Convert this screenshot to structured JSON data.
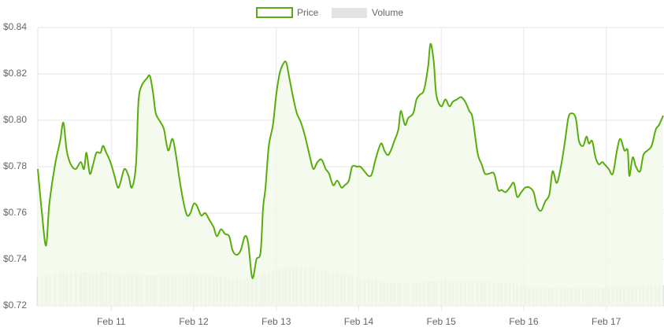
{
  "chart_data": {
    "type": "line",
    "x": [
      10.11,
      10.16,
      10.21,
      10.25,
      10.32,
      10.38,
      10.42,
      10.46,
      10.51,
      10.57,
      10.63,
      10.67,
      10.7,
      10.74,
      10.78,
      10.82,
      10.87,
      10.9,
      10.94,
      10.99,
      11.04,
      11.08,
      11.11,
      11.16,
      11.21,
      11.25,
      11.3,
      11.33,
      11.37,
      11.43,
      11.47,
      11.51,
      11.54,
      11.6,
      11.64,
      11.69,
      11.74,
      11.78,
      11.83,
      11.88,
      11.92,
      11.96,
      12.0,
      12.04,
      12.09,
      12.14,
      12.19,
      12.24,
      12.28,
      12.33,
      12.38,
      12.43,
      12.47,
      12.52,
      12.57,
      12.62,
      12.66,
      12.71,
      12.76,
      12.81,
      12.84,
      12.87,
      12.91,
      12.96,
      13.0,
      13.04,
      13.08,
      13.12,
      13.16,
      13.21,
      13.25,
      13.3,
      13.35,
      13.41,
      13.45,
      13.5,
      13.55,
      13.6,
      13.64,
      13.69,
      13.74,
      13.79,
      13.83,
      13.88,
      13.92,
      13.98,
      14.02,
      14.07,
      14.12,
      14.16,
      14.21,
      14.27,
      14.31,
      14.35,
      14.39,
      14.43,
      14.48,
      14.51,
      14.56,
      14.6,
      14.66,
      14.7,
      14.74,
      14.79,
      14.84,
      14.87,
      14.91,
      14.94,
      15.0,
      15.05,
      15.1,
      15.14,
      15.19,
      15.24,
      15.29,
      15.34,
      15.38,
      15.44,
      15.49,
      15.53,
      15.58,
      15.64,
      15.69,
      15.73,
      15.78,
      15.83,
      15.88,
      15.92,
      15.97,
      16.02,
      16.07,
      16.12,
      16.16,
      16.21,
      16.26,
      16.31,
      16.35,
      16.4,
      16.45,
      16.5,
      16.54,
      16.58,
      16.63,
      16.67,
      16.72,
      16.76,
      16.79,
      16.83,
      16.87,
      16.91,
      16.95,
      16.98,
      17.03,
      17.08,
      17.13,
      17.17,
      17.22,
      17.26,
      17.28,
      17.32,
      17.36,
      17.41,
      17.45,
      17.5,
      17.55,
      17.6,
      17.64,
      17.69
    ],
    "series": [
      {
        "name": "Price",
        "color": "#58ad0c",
        "fill": "#f1faea",
        "values": [
          0.779,
          0.76,
          0.746,
          0.764,
          0.781,
          0.791,
          0.799,
          0.787,
          0.781,
          0.779,
          0.782,
          0.779,
          0.786,
          0.777,
          0.781,
          0.786,
          0.786,
          0.789,
          0.786,
          0.782,
          0.776,
          0.771,
          0.773,
          0.779,
          0.776,
          0.771,
          0.781,
          0.808,
          0.815,
          0.818,
          0.819,
          0.811,
          0.803,
          0.799,
          0.796,
          0.787,
          0.792,
          0.786,
          0.774,
          0.764,
          0.759,
          0.76,
          0.764,
          0.763,
          0.759,
          0.76,
          0.757,
          0.754,
          0.75,
          0.753,
          0.751,
          0.75,
          0.744,
          0.742,
          0.744,
          0.75,
          0.747,
          0.732,
          0.74,
          0.743,
          0.762,
          0.771,
          0.789,
          0.798,
          0.811,
          0.82,
          0.824,
          0.825,
          0.818,
          0.809,
          0.803,
          0.799,
          0.793,
          0.784,
          0.779,
          0.782,
          0.783,
          0.779,
          0.777,
          0.772,
          0.774,
          0.771,
          0.772,
          0.774,
          0.78,
          0.78,
          0.78,
          0.778,
          0.776,
          0.777,
          0.784,
          0.79,
          0.787,
          0.785,
          0.787,
          0.791,
          0.796,
          0.804,
          0.798,
          0.801,
          0.803,
          0.809,
          0.811,
          0.813,
          0.823,
          0.833,
          0.825,
          0.811,
          0.806,
          0.809,
          0.806,
          0.808,
          0.809,
          0.81,
          0.808,
          0.804,
          0.801,
          0.786,
          0.781,
          0.777,
          0.777,
          0.777,
          0.77,
          0.77,
          0.769,
          0.771,
          0.773,
          0.767,
          0.769,
          0.771,
          0.771,
          0.769,
          0.763,
          0.761,
          0.765,
          0.768,
          0.778,
          0.773,
          0.78,
          0.791,
          0.801,
          0.803,
          0.801,
          0.791,
          0.789,
          0.793,
          0.79,
          0.791,
          0.784,
          0.781,
          0.782,
          0.781,
          0.779,
          0.777,
          0.787,
          0.792,
          0.787,
          0.787,
          0.776,
          0.784,
          0.78,
          0.778,
          0.785,
          0.787,
          0.789,
          0.796,
          0.798,
          0.802
        ]
      },
      {
        "name": "Volume",
        "color": "#e3e3e3",
        "values": [
          0.7322,
          0.7325,
          0.733,
          0.7335,
          0.734,
          0.7343,
          0.7345,
          0.7345,
          0.7345,
          0.7345,
          0.7346,
          0.7346,
          0.7346,
          0.7346,
          0.7347,
          0.7347,
          0.7347,
          0.7346,
          0.7345,
          0.7343,
          0.734,
          0.7335,
          0.7333,
          0.7332,
          0.7335,
          0.7336,
          0.7335,
          0.7334,
          0.7333,
          0.7332,
          0.7332,
          0.7332,
          0.7332,
          0.7332,
          0.7333,
          0.7333,
          0.7333,
          0.7333,
          0.7333,
          0.7333,
          0.7333,
          0.7333,
          0.7333,
          0.7333,
          0.7333,
          0.7332,
          0.733,
          0.733,
          0.7328,
          0.7325,
          0.7323,
          0.732,
          0.7318,
          0.7315,
          0.7315,
          0.7318,
          0.732,
          0.7323,
          0.7328,
          0.7335,
          0.734,
          0.7343,
          0.7345,
          0.735,
          0.7352,
          0.7355,
          0.736,
          0.7363,
          0.7366,
          0.7366,
          0.7366,
          0.7366,
          0.7364,
          0.7362,
          0.736,
          0.7357,
          0.7355,
          0.7352,
          0.735,
          0.7345,
          0.7342,
          0.734,
          0.7335,
          0.7332,
          0.7328,
          0.7325,
          0.732,
          0.7318,
          0.7315,
          0.7312,
          0.731,
          0.7305,
          0.7302,
          0.73,
          0.7298,
          0.7298,
          0.7298,
          0.73,
          0.73,
          0.7302,
          0.7302,
          0.7302,
          0.7303,
          0.7303,
          0.7305,
          0.7305,
          0.7306,
          0.7306,
          0.7306,
          0.7306,
          0.7306,
          0.7306,
          0.7306,
          0.7306,
          0.7306,
          0.7306,
          0.7306,
          0.7305,
          0.7305,
          0.7305,
          0.7305,
          0.7304,
          0.7303,
          0.7302,
          0.73,
          0.7298,
          0.7295,
          0.729,
          0.7285,
          0.7282,
          0.728,
          0.728,
          0.7278,
          0.7278,
          0.7278,
          0.7278,
          0.7278,
          0.7278,
          0.7278,
          0.7278,
          0.7278,
          0.7278,
          0.7278,
          0.7278,
          0.7278,
          0.7276,
          0.7276,
          0.7276,
          0.7276,
          0.7276,
          0.7276,
          0.7276,
          0.7278,
          0.728,
          0.7282,
          0.7283,
          0.7283,
          0.7283,
          0.7284,
          0.7284,
          0.7285,
          0.7285,
          0.7286,
          0.7286,
          0.7287,
          0.7288,
          0.7289,
          0.729
        ]
      }
    ],
    "xlim": [
      10.11,
      17.7
    ],
    "ylim": [
      0.72,
      0.84
    ],
    "xticks": [
      {
        "value": 11,
        "label": "Feb 11"
      },
      {
        "value": 12,
        "label": "Feb 12"
      },
      {
        "value": 13,
        "label": "Feb 13"
      },
      {
        "value": 14,
        "label": "Feb 14"
      },
      {
        "value": 15,
        "label": "Feb 15"
      },
      {
        "value": 16,
        "label": "Feb 16"
      },
      {
        "value": 17,
        "label": "Feb 17"
      }
    ],
    "yticks": [
      {
        "value": 0.72,
        "label": "$0.72"
      },
      {
        "value": 0.74,
        "label": "$0.74"
      },
      {
        "value": 0.76,
        "label": "$0.76"
      },
      {
        "value": 0.78,
        "label": "$0.78"
      },
      {
        "value": 0.8,
        "label": "$0.80"
      },
      {
        "value": 0.82,
        "label": "$0.82"
      },
      {
        "value": 0.84,
        "label": "$0.84"
      }
    ],
    "grid": true,
    "legend": "top"
  }
}
